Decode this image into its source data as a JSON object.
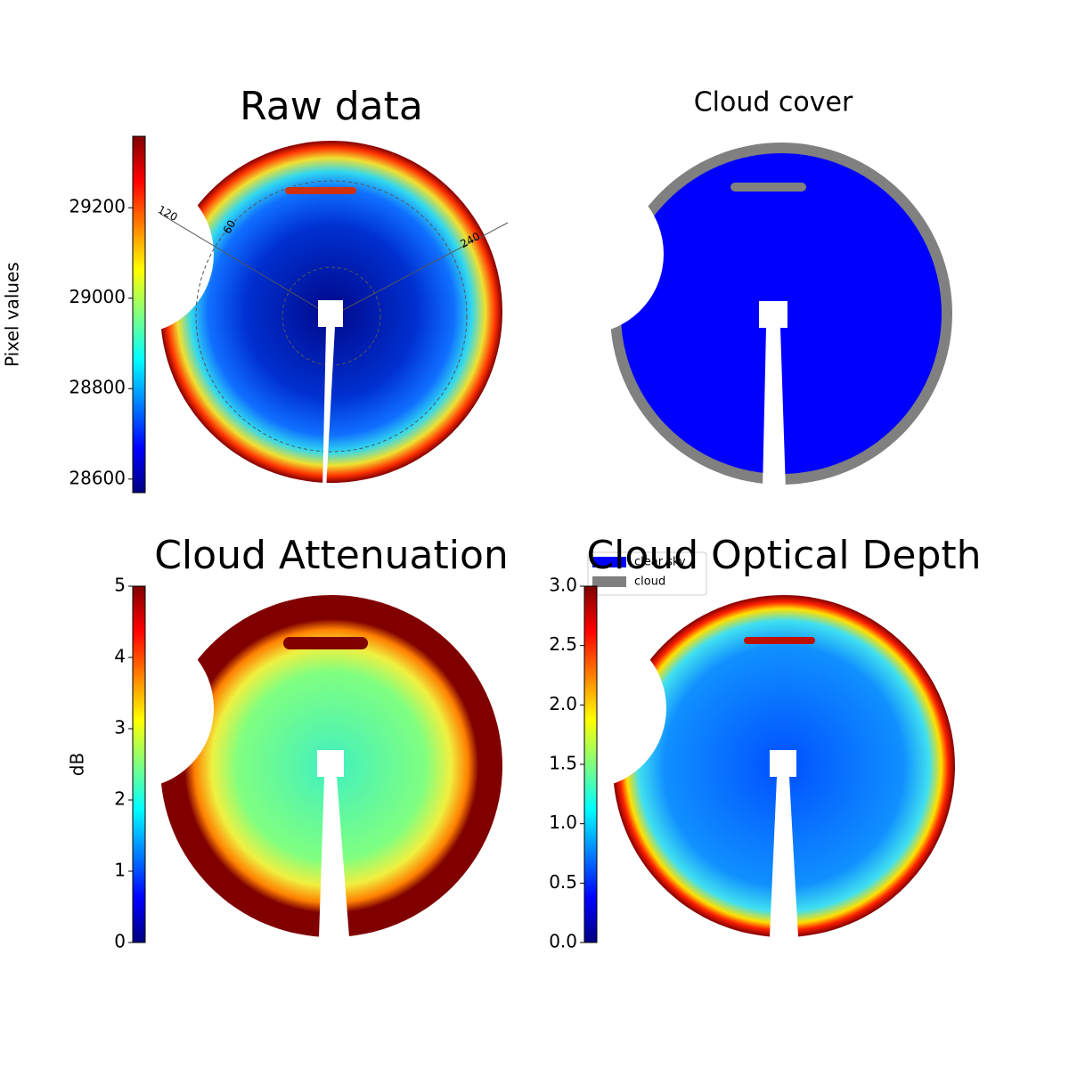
{
  "chart_data": [
    {
      "type": "image",
      "title": "Raw data",
      "colorbar_label": "Pixel values",
      "colormap": "jet",
      "clim": [
        28570,
        29358
      ],
      "cticks": [
        28600,
        28800,
        29000,
        29200
      ],
      "annotations": [
        "120",
        "60",
        "240"
      ]
    },
    {
      "type": "image",
      "title": "Cloud cover",
      "series": [
        {
          "name": "clear sky",
          "color": "#0000ff"
        },
        {
          "name": "cloud",
          "color": "#808080"
        }
      ]
    },
    {
      "type": "image",
      "title": "Cloud Attenuation",
      "colorbar_label": "dB",
      "colormap": "jet",
      "clim": [
        0,
        5
      ],
      "cticks": [
        0,
        1,
        2,
        3,
        4,
        5
      ]
    },
    {
      "type": "image",
      "title": "Cloud Optical Depth",
      "colormap": "jet",
      "clim": [
        0,
        3
      ],
      "cticks": [
        {
          "value": 0,
          "label": "0.0"
        },
        {
          "value": 0.5,
          "label": "0.5"
        },
        {
          "value": 1,
          "label": "1.0"
        },
        {
          "value": 1.5,
          "label": "1.5"
        },
        {
          "value": 2,
          "label": "2.0"
        },
        {
          "value": 2.5,
          "label": "2.5"
        },
        {
          "value": 3,
          "label": "3.0"
        }
      ]
    }
  ]
}
